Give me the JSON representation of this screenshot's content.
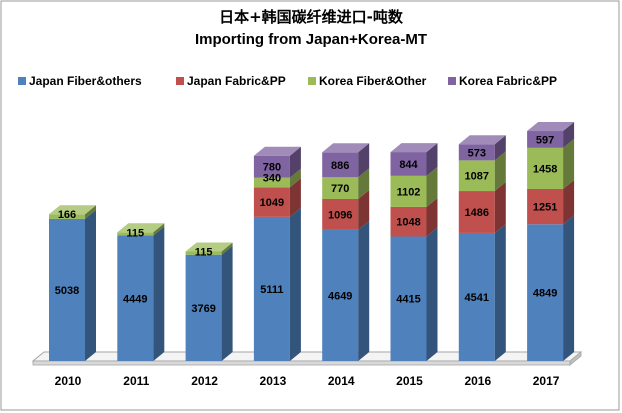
{
  "chart_data": {
    "type": "bar",
    "stacked": true,
    "three_d": true,
    "title": "日本+韩国碳纤维进口-吨数",
    "subtitle": "Importing from Japan+Korea-MT",
    "categories": [
      "2010",
      "2011",
      "2012",
      "2013",
      "2014",
      "2015",
      "2016",
      "2017"
    ],
    "series": [
      {
        "name": "Japan Fiber&others",
        "color": "#4F81BD",
        "values": [
          5038,
          4449,
          3769,
          5111,
          4649,
          4415,
          4541,
          4849
        ]
      },
      {
        "name": "Japan Fabric&PP",
        "color": "#C0504D",
        "values": [
          0,
          0,
          0,
          1049,
          1096,
          1048,
          1486,
          1251
        ]
      },
      {
        "name": "Korea Fiber&Other",
        "color": "#9BBB59",
        "values": [
          166,
          115,
          115,
          340,
          770,
          1102,
          1087,
          1458
        ]
      },
      {
        "name": "Korea Fabric&PP",
        "color": "#8064A2",
        "values": [
          0,
          0,
          0,
          780,
          886,
          844,
          573,
          597
        ]
      }
    ],
    "legend": "top",
    "grid": false,
    "ylim": [
      0,
      8000
    ]
  }
}
